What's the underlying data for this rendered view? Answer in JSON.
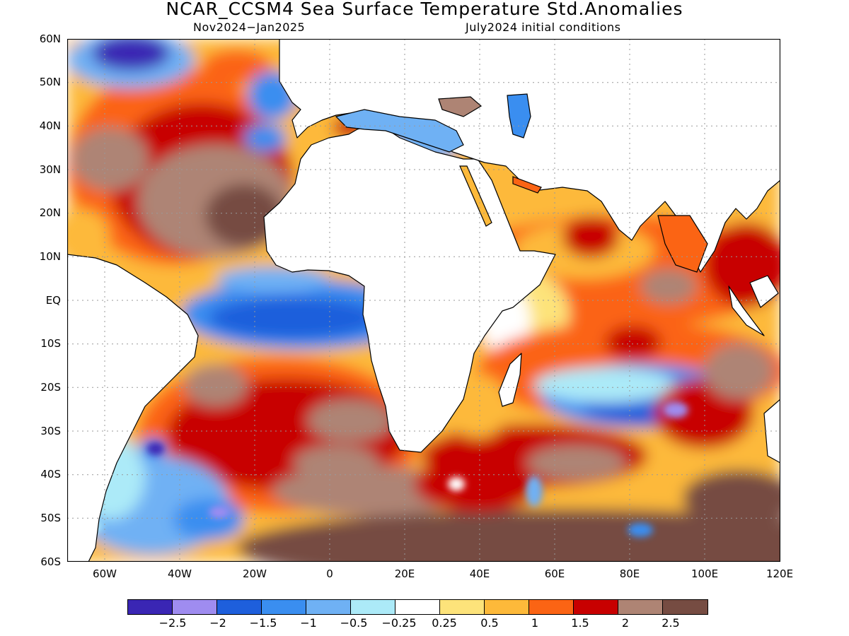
{
  "title": "NCAR_CCSM4 Sea Surface Temperature Std.Anomalies",
  "subtitle_left": "Nov2024−Jan2025",
  "subtitle_right": "July2024 initial conditions",
  "lat_labels": [
    "60N",
    "50N",
    "40N",
    "30N",
    "20N",
    "10N",
    "EQ",
    "10S",
    "20S",
    "30S",
    "40S",
    "50S",
    "60S"
  ],
  "lon_labels": [
    "60W",
    "40W",
    "20W",
    "0",
    "20E",
    "40E",
    "60E",
    "80E",
    "100E",
    "120E"
  ],
  "colorbar": {
    "colors": [
      "#3a26b4",
      "#9f8cf0",
      "#1e5fdc",
      "#3a8ef0",
      "#6fb1f4",
      "#aceaf8",
      "#ffffff",
      "#fde37a",
      "#fdb93a",
      "#fb6414",
      "#c80000",
      "#ae8474",
      "#764c42"
    ],
    "tick_labels": [
      "−2.5",
      "−2",
      "−1.5",
      "−1",
      "−0.5",
      "−0.25",
      "0.25",
      "0.5",
      "1",
      "1.5",
      "2",
      "2.5"
    ]
  }
}
